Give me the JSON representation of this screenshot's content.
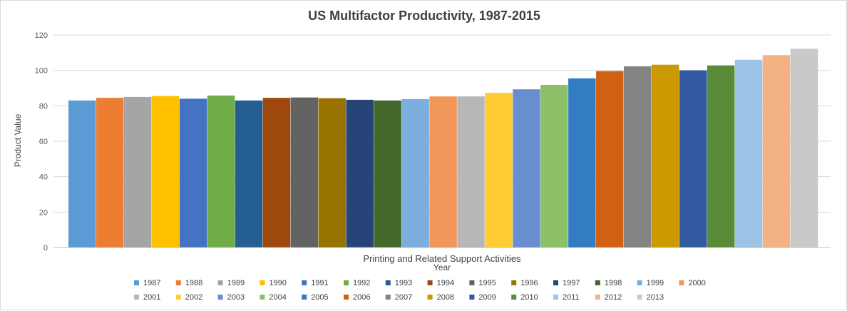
{
  "chart_data": {
    "type": "bar",
    "title": "US Multifactor Productivity, 1987-2015",
    "xlabel": "Year",
    "ylabel": "Product Value",
    "categories": [
      "Printing and Related Support Activities"
    ],
    "ylim": [
      0,
      120
    ],
    "yticks": [
      0,
      20,
      40,
      60,
      80,
      100,
      120
    ],
    "grid": true,
    "legend_position": "bottom",
    "series": [
      {
        "name": "1987",
        "values": [
          83.0
        ],
        "color": "#5b9bd5"
      },
      {
        "name": "1988",
        "values": [
          84.5
        ],
        "color": "#ed7d31"
      },
      {
        "name": "1989",
        "values": [
          85.0
        ],
        "color": "#a5a5a5"
      },
      {
        "name": "1990",
        "values": [
          85.5
        ],
        "color": "#ffc000"
      },
      {
        "name": "1991",
        "values": [
          84.0
        ],
        "color": "#4472c4"
      },
      {
        "name": "1992",
        "values": [
          85.8
        ],
        "color": "#70ad47"
      },
      {
        "name": "1993",
        "values": [
          83.0
        ],
        "color": "#255e91"
      },
      {
        "name": "1994",
        "values": [
          84.5
        ],
        "color": "#9e480e"
      },
      {
        "name": "1995",
        "values": [
          84.7
        ],
        "color": "#636363"
      },
      {
        "name": "1996",
        "values": [
          84.3
        ],
        "color": "#997300"
      },
      {
        "name": "1997",
        "values": [
          83.4
        ],
        "color": "#264478"
      },
      {
        "name": "1998",
        "values": [
          83.0
        ],
        "color": "#43682b"
      },
      {
        "name": "1999",
        "values": [
          83.8
        ],
        "color": "#7cafdd"
      },
      {
        "name": "2000",
        "values": [
          85.3
        ],
        "color": "#f1975a"
      },
      {
        "name": "2001",
        "values": [
          85.3
        ],
        "color": "#b7b7b7"
      },
      {
        "name": "2002",
        "values": [
          87.3
        ],
        "color": "#ffcd33"
      },
      {
        "name": "2003",
        "values": [
          89.3
        ],
        "color": "#698ed0"
      },
      {
        "name": "2004",
        "values": [
          91.8
        ],
        "color": "#8cc168"
      },
      {
        "name": "2005",
        "values": [
          95.5
        ],
        "color": "#327dc2"
      },
      {
        "name": "2006",
        "values": [
          99.6
        ],
        "color": "#d26012"
      },
      {
        "name": "2007",
        "values": [
          102.3
        ],
        "color": "#848484"
      },
      {
        "name": "2008",
        "values": [
          103.2
        ],
        "color": "#cc9a00"
      },
      {
        "name": "2009",
        "values": [
          100.0
        ],
        "color": "#335aa1"
      },
      {
        "name": "2010",
        "values": [
          102.8
        ],
        "color": "#5a8b39"
      },
      {
        "name": "2011",
        "values": [
          106.0
        ],
        "color": "#9dc3e6"
      },
      {
        "name": "2012",
        "values": [
          108.6
        ],
        "color": "#f4b183"
      },
      {
        "name": "2013",
        "values": [
          112.2
        ],
        "color": "#c9c9c9"
      }
    ]
  }
}
